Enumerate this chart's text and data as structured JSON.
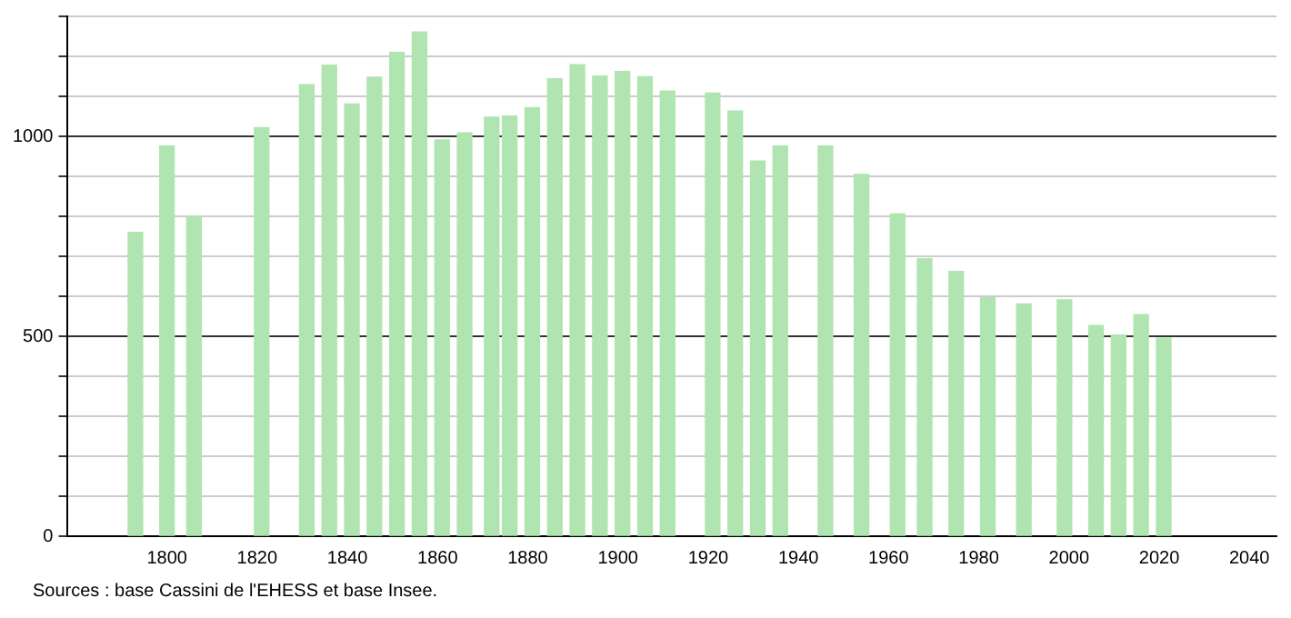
{
  "chart_data": {
    "type": "bar",
    "x": [
      1793,
      1800,
      1806,
      1821,
      1831,
      1836,
      1841,
      1846,
      1851,
      1856,
      1861,
      1866,
      1872,
      1876,
      1881,
      1886,
      1891,
      1896,
      1901,
      1906,
      1911,
      1921,
      1926,
      1931,
      1936,
      1946,
      1954,
      1962,
      1968,
      1975,
      1982,
      1990,
      1999,
      2006,
      2011,
      2016,
      2021
    ],
    "values": [
      760,
      976,
      800,
      1022,
      1129,
      1178,
      1081,
      1148,
      1210,
      1261,
      991,
      1009,
      1048,
      1051,
      1072,
      1144,
      1179,
      1151,
      1162,
      1149,
      1113,
      1108,
      1063,
      938,
      976,
      976,
      905,
      806,
      694,
      662,
      596,
      581,
      591,
      527,
      503,
      554,
      495
    ],
    "color": "#b0e5b2",
    "xlim": [
      1778,
      2046
    ],
    "xticks": [
      1800,
      1820,
      1840,
      1860,
      1880,
      1900,
      1920,
      1940,
      1960,
      1980,
      2000,
      2020,
      2040
    ],
    "ylim": [
      0,
      1300
    ],
    "yticks": [
      0,
      {
        "value": 100,
        "label": null
      },
      {
        "value": 200,
        "label": null
      },
      {
        "value": 300,
        "label": null
      },
      {
        "value": 400,
        "label": null
      },
      500,
      {
        "value": 600,
        "label": null
      },
      {
        "value": 700,
        "label": null
      },
      {
        "value": 800,
        "label": null
      },
      {
        "value": 900,
        "label": null
      },
      1000,
      {
        "value": 1100,
        "label": null
      },
      {
        "value": 1200,
        "label": null
      },
      {
        "value": 1300,
        "label": null
      }
    ],
    "grid": "y",
    "legend": false,
    "annotations": [
      "Sources : base Cassini de l'EHESS et base Insee."
    ]
  }
}
